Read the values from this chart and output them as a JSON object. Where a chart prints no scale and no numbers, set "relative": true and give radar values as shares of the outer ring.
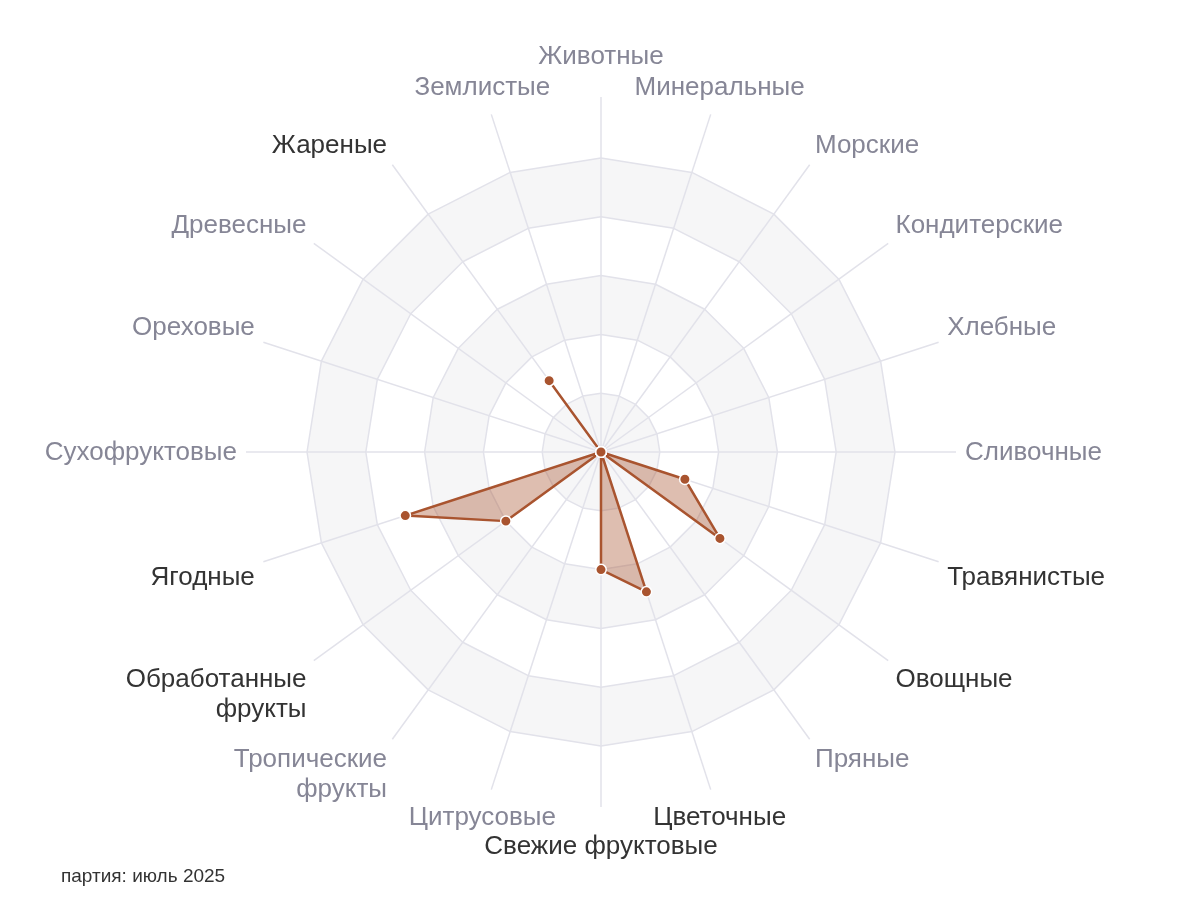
{
  "chart_data": {
    "type": "radar",
    "categories": [
      "Животные",
      "Минеральные",
      "Морские",
      "Кондитерские",
      "Хлебные",
      "Сливочные",
      "Травянистые",
      "Овощные",
      "Пряные",
      "Цветочные",
      "Свежие фруктовые",
      "Цитрусовые",
      "Тропические фрукты",
      "Обработанные фрукты",
      "Ягодные",
      "Сухофруктовые",
      "Ореховые",
      "Древесные",
      "Жареные",
      "Землистые"
    ],
    "series": [
      {
        "color": "#a9542f",
        "values": [
          0,
          0,
          0,
          0,
          0,
          0,
          0.3,
          0.5,
          0,
          0.5,
          0.4,
          0,
          0,
          0.4,
          0.7,
          0,
          0,
          0,
          0.3,
          0
        ]
      }
    ],
    "relative": true,
    "grid": true,
    "marker": "circle",
    "line_style": "solid",
    "annotations": [
      "партия: июль 2025"
    ]
  }
}
